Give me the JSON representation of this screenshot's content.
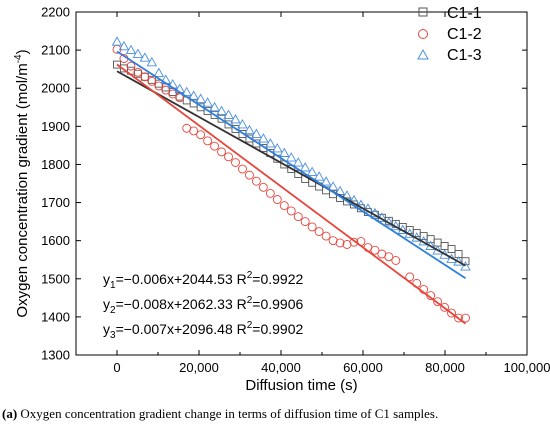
{
  "caption": {
    "tag": "(a)",
    "text": "Oxygen concentration gradient change in terms of diffusion time of C1 samples."
  },
  "chart_data": {
    "type": "scatter",
    "xlabel": "Diffusion time (s)",
    "ylabel_main": "Oxygen concentration gradient (mol/m",
    "ylabel_sup": "-4",
    "ylabel_end": ")",
    "xlim": [
      -10000,
      100000
    ],
    "ylim": [
      1300,
      2200
    ],
    "x_ticks": [
      0,
      20000,
      40000,
      60000,
      80000,
      100000
    ],
    "x_tick_labels": [
      "0",
      "20,000",
      "40,000",
      "60,000",
      "80,000",
      "100,000"
    ],
    "y_ticks": [
      1300,
      1400,
      1500,
      1600,
      1700,
      1800,
      1900,
      2000,
      2100,
      2200
    ],
    "y_tick_labels": [
      "1300",
      "1400",
      "1500",
      "1600",
      "1700",
      "1800",
      "1900",
      "2000",
      "2100",
      "2200"
    ],
    "grid": false,
    "legend_position": "top-right",
    "series": [
      {
        "name": "C1-1",
        "marker": "square",
        "color": "#555555",
        "fit_color": "#333333",
        "fit": {
          "slope": -0.006,
          "intercept": 2044.53
        },
        "x": [
          0,
          1700,
          3400,
          5100,
          6800,
          8500,
          10200,
          11900,
          13600,
          15300,
          17000,
          18700,
          20400,
          22100,
          23800,
          25500,
          27200,
          28900,
          30600,
          32300,
          34000,
          35700,
          37400,
          39100,
          40800,
          42500,
          44200,
          45900,
          47600,
          49300,
          51000,
          52700,
          54400,
          56100,
          57800,
          59500,
          61200,
          62900,
          64600,
          66300,
          68000,
          69700,
          71400,
          73100,
          74800,
          76500,
          78200,
          79900,
          81600,
          83300,
          85000
        ],
        "y": [
          2062,
          2052,
          2046,
          2038,
          2030,
          2022,
          2012,
          2002,
          1990,
          1978,
          1968,
          1960,
          1950,
          1940,
          1930,
          1920,
          1905,
          1893,
          1880,
          1868,
          1855,
          1843,
          1830,
          1815,
          1800,
          1788,
          1775,
          1762,
          1752,
          1742,
          1732,
          1722,
          1712,
          1703,
          1695,
          1685,
          1675,
          1668,
          1660,
          1652,
          1644,
          1636,
          1628,
          1620,
          1612,
          1604,
          1595,
          1586,
          1578,
          1565,
          1546
        ]
      },
      {
        "name": "C1-2",
        "marker": "circle",
        "color": "#e8453c",
        "fit_color": "#e8453c",
        "fit": {
          "slope": -0.008,
          "intercept": 2062.33
        },
        "x": [
          0,
          1700,
          3400,
          5100,
          6800,
          8500,
          10200,
          11900,
          13600,
          15300,
          17000,
          18700,
          20400,
          22100,
          23800,
          25500,
          27200,
          28900,
          30600,
          32300,
          34000,
          35700,
          37400,
          39100,
          40800,
          42500,
          44200,
          45900,
          47600,
          49300,
          51000,
          52700,
          54400,
          56100,
          57800,
          59500,
          61200,
          62900,
          64600,
          66300,
          68000,
          71400,
          73100,
          74800,
          76500,
          78200,
          79900,
          81600,
          83300,
          85000
        ],
        "y": [
          2102,
          2078,
          2058,
          2042,
          2030,
          2018,
          2006,
          1995,
          1985,
          1975,
          1895,
          1888,
          1878,
          1862,
          1848,
          1833,
          1820,
          1805,
          1788,
          1772,
          1756,
          1740,
          1724,
          1708,
          1692,
          1678,
          1663,
          1650,
          1636,
          1624,
          1612,
          1600,
          1594,
          1590,
          1596,
          1598,
          1582,
          1575,
          1565,
          1558,
          1548,
          1505,
          1488,
          1472,
          1456,
          1440,
          1425,
          1410,
          1397,
          1397
        ]
      },
      {
        "name": "C1-3",
        "marker": "triangle",
        "color": "#4a8fe0",
        "fit_color": "#2f7fdd",
        "fit": {
          "slope": -0.007,
          "intercept": 2096.48
        },
        "x": [
          0,
          1700,
          3400,
          5100,
          6800,
          8500,
          10200,
          11900,
          13600,
          15300,
          17000,
          18700,
          20400,
          22100,
          23800,
          25500,
          27200,
          28900,
          30600,
          32300,
          34000,
          35700,
          37400,
          39100,
          40800,
          42500,
          44200,
          45900,
          47600,
          49300,
          51000,
          52700,
          54400,
          56100,
          57800,
          59500,
          61200,
          62900,
          64600,
          66300,
          68000,
          69700,
          71400,
          73100,
          74800,
          76500,
          78200,
          79900,
          81600,
          83300,
          85000
        ],
        "y": [
          2122,
          2110,
          2100,
          2090,
          2080,
          2068,
          2040,
          2022,
          2010,
          1998,
          1990,
          1980,
          1972,
          1962,
          1950,
          1940,
          1930,
          1918,
          1905,
          1890,
          1880,
          1868,
          1855,
          1842,
          1830,
          1818,
          1805,
          1792,
          1780,
          1768,
          1755,
          1742,
          1730,
          1718,
          1706,
          1694,
          1684,
          1672,
          1660,
          1648,
          1638,
          1628,
          1618,
          1608,
          1598,
          1586,
          1574,
          1563,
          1552,
          1545,
          1532
        ]
      }
    ],
    "equations": [
      {
        "y": "y",
        "sub": "1",
        "rest": "=−0.006x+2044.53 R",
        "sup": "2",
        "tail": "=0.9922"
      },
      {
        "y": "y",
        "sub": "2",
        "rest": "=−0.008x+2062.33 R",
        "sup": "2",
        "tail": "=0.9906"
      },
      {
        "y": "y",
        "sub": "3",
        "rest": "=−0.007x+2096.48 R",
        "sup": "2",
        "tail": "=0.9902"
      }
    ]
  }
}
